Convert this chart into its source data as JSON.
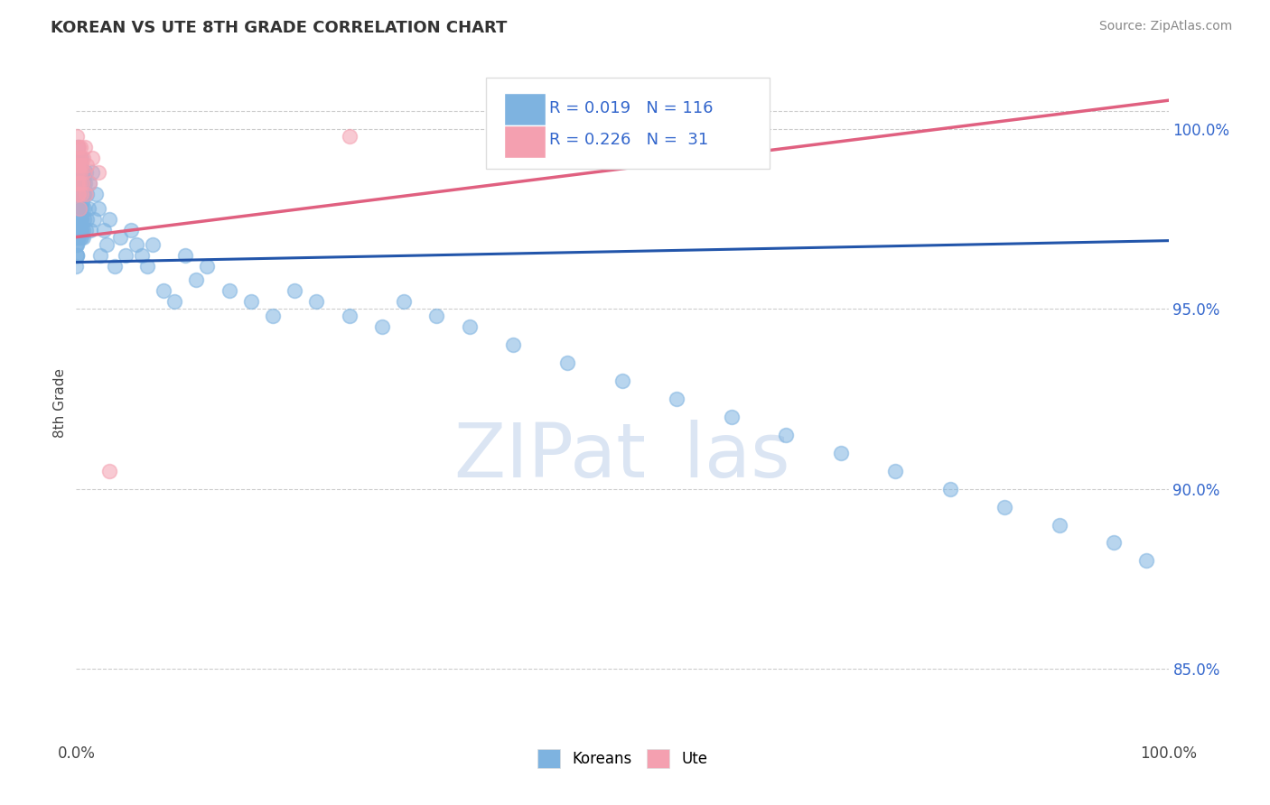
{
  "title": "KOREAN VS UTE 8TH GRADE CORRELATION CHART",
  "source_text": "Source: ZipAtlas.com",
  "ylabel": "8th Grade",
  "xlim": [
    0.0,
    100.0
  ],
  "ylim": [
    83.0,
    101.8
  ],
  "yticks": [
    85.0,
    90.0,
    95.0,
    100.0
  ],
  "xticklabels": [
    "0.0%",
    "100.0%"
  ],
  "yticklabels": [
    "85.0%",
    "90.0%",
    "95.0%",
    "100.0%"
  ],
  "background_color": "#ffffff",
  "blue_color": "#7eb3e0",
  "pink_color": "#f4a0b0",
  "blue_line_color": "#2255aa",
  "pink_line_color": "#e06080",
  "blue_trend_x": [
    0.0,
    100.0
  ],
  "blue_trend_y": [
    96.3,
    96.9
  ],
  "pink_trend_x": [
    0.0,
    100.0
  ],
  "pink_trend_y": [
    97.0,
    100.8
  ],
  "korean_x": [
    0.02,
    0.03,
    0.04,
    0.05,
    0.06,
    0.07,
    0.08,
    0.09,
    0.1,
    0.1,
    0.12,
    0.13,
    0.14,
    0.15,
    0.15,
    0.16,
    0.17,
    0.18,
    0.19,
    0.2,
    0.2,
    0.22,
    0.23,
    0.25,
    0.25,
    0.27,
    0.28,
    0.3,
    0.3,
    0.32,
    0.33,
    0.35,
    0.35,
    0.37,
    0.38,
    0.4,
    0.4,
    0.42,
    0.43,
    0.45,
    0.45,
    0.47,
    0.48,
    0.5,
    0.52,
    0.55,
    0.58,
    0.6,
    0.62,
    0.65,
    0.68,
    0.7,
    0.72,
    0.75,
    0.8,
    0.85,
    0.9,
    0.95,
    1.0,
    1.1,
    1.2,
    1.3,
    1.5,
    1.6,
    1.8,
    2.0,
    2.2,
    2.5,
    2.8,
    3.0,
    3.5,
    4.0,
    4.5,
    5.0,
    5.5,
    6.0,
    6.5,
    7.0,
    8.0,
    9.0,
    10.0,
    11.0,
    12.0,
    14.0,
    16.0,
    18.0,
    20.0,
    22.0,
    25.0,
    28.0,
    30.0,
    33.0,
    36.0,
    40.0,
    45.0,
    50.0,
    55.0,
    60.0,
    65.0,
    70.0,
    75.0,
    80.0,
    85.0,
    90.0,
    95.0,
    98.0,
    0.01,
    0.01,
    0.02,
    0.02,
    0.03,
    0.03,
    0.04,
    0.04,
    0.05,
    0.05,
    0.06,
    0.07,
    0.08,
    0.09
  ],
  "korean_y": [
    97.8,
    98.2,
    97.5,
    99.0,
    98.5,
    97.2,
    98.8,
    97.0,
    99.2,
    98.0,
    97.5,
    98.8,
    97.0,
    99.5,
    98.2,
    97.8,
    99.0,
    97.5,
    98.5,
    97.2,
    99.2,
    98.0,
    97.5,
    98.8,
    97.0,
    99.2,
    98.5,
    97.8,
    99.0,
    97.5,
    98.2,
    97.0,
    98.8,
    97.5,
    99.0,
    97.2,
    98.5,
    97.8,
    99.2,
    97.0,
    98.5,
    97.2,
    98.8,
    97.5,
    98.0,
    97.8,
    98.2,
    97.0,
    98.5,
    97.2,
    98.8,
    97.5,
    98.2,
    97.8,
    98.5,
    97.2,
    98.8,
    97.5,
    98.2,
    97.8,
    98.5,
    97.2,
    98.8,
    97.5,
    98.2,
    97.8,
    96.5,
    97.2,
    96.8,
    97.5,
    96.2,
    97.0,
    96.5,
    97.2,
    96.8,
    96.5,
    96.2,
    96.8,
    95.5,
    95.2,
    96.5,
    95.8,
    96.2,
    95.5,
    95.2,
    94.8,
    95.5,
    95.2,
    94.8,
    94.5,
    95.2,
    94.8,
    94.5,
    94.0,
    93.5,
    93.0,
    92.5,
    92.0,
    91.5,
    91.0,
    90.5,
    90.0,
    89.5,
    89.0,
    88.5,
    88.0,
    96.2,
    96.8,
    97.2,
    96.5,
    97.8,
    97.2,
    97.5,
    96.8,
    97.2,
    96.5,
    96.8,
    97.0,
    96.5,
    97.2
  ],
  "ute_x": [
    0.02,
    0.04,
    0.06,
    0.08,
    0.1,
    0.12,
    0.14,
    0.16,
    0.18,
    0.2,
    0.22,
    0.25,
    0.28,
    0.3,
    0.32,
    0.35,
    0.38,
    0.4,
    0.45,
    0.5,
    0.55,
    0.6,
    0.7,
    0.8,
    0.9,
    1.0,
    1.2,
    1.5,
    2.0,
    3.0,
    25.0
  ],
  "ute_y": [
    99.2,
    98.5,
    99.8,
    98.8,
    99.5,
    98.2,
    99.0,
    98.5,
    99.2,
    98.8,
    99.5,
    98.2,
    99.0,
    97.8,
    98.5,
    99.2,
    98.8,
    99.5,
    98.2,
    99.0,
    98.5,
    99.2,
    98.8,
    99.5,
    98.2,
    99.0,
    98.5,
    99.2,
    98.8,
    90.5,
    99.8
  ]
}
